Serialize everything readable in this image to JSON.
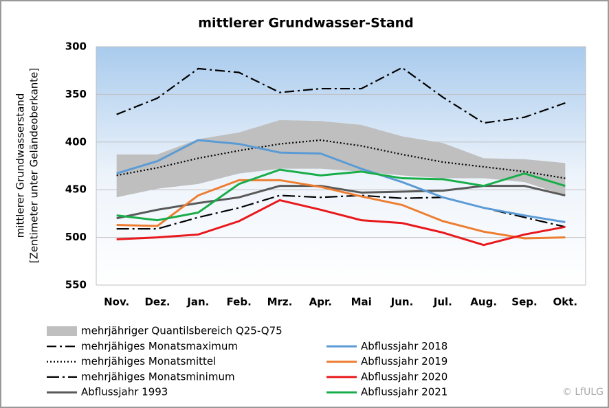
{
  "chart_data": {
    "type": "line",
    "title": "mittlerer Grundwasser-Stand",
    "y_label": [
      "mittlerer Grundwasserstand",
      "[Zentimeter unter Geländeoberkante]"
    ],
    "copyright": "© LfULG",
    "categories": [
      "Nov.",
      "Dez.",
      "Jan.",
      "Feb.",
      "Mrz.",
      "Apr.",
      "Mai",
      "Jun.",
      "Jul.",
      "Aug.",
      "Sep.",
      "Okt."
    ],
    "ylim": [
      300,
      550
    ],
    "yticks": [
      300,
      350,
      400,
      450,
      500,
      550
    ],
    "y_inverted": true,
    "grid": true,
    "band": {
      "name": "mehrjähriger Quantilsbereich Q25-Q75",
      "color": "#bfbfbf",
      "q25": [
        413,
        413,
        397,
        390,
        377,
        378,
        382,
        394,
        401,
        417,
        418,
        422
      ],
      "q75": [
        458,
        449,
        444,
        433,
        428,
        428,
        431,
        435,
        438,
        438,
        442,
        456
      ]
    },
    "series": [
      {
        "name": "mehrjähiges Monatsmaximum",
        "color": "#000000",
        "dash": "dashdot",
        "values": [
          371,
          354,
          323,
          327,
          348,
          344,
          344,
          322,
          353,
          380,
          374,
          359
        ]
      },
      {
        "name": "mehrjähiges Monatsmittel",
        "color": "#000000",
        "dash": "dot",
        "values": [
          435,
          427,
          417,
          409,
          402,
          398,
          404,
          413,
          421,
          426,
          431,
          438
        ]
      },
      {
        "name": "mehrjähiges Monatsminimum",
        "color": "#000000",
        "dash": "longdashdot",
        "values": [
          491,
          491,
          479,
          469,
          456,
          458,
          456,
          459,
          458,
          469,
          479,
          489
        ]
      },
      {
        "name": "Abflussjahr 1993",
        "color": "#595959",
        "dash": "solid",
        "values": [
          480,
          471,
          464,
          458,
          446,
          446,
          453,
          452,
          451,
          446,
          446,
          456
        ]
      },
      {
        "name": "Abflussjahr 2018",
        "color": "#5b9bd5",
        "dash": "solid",
        "values": [
          433,
          420,
          398,
          402,
          411,
          412,
          428,
          442,
          458,
          469,
          477,
          484
        ]
      },
      {
        "name": "Abflussjahr 2019",
        "color": "#ed7d31",
        "dash": "solid",
        "values": [
          487,
          488,
          456,
          440,
          440,
          447,
          457,
          466,
          483,
          494,
          501,
          500
        ]
      },
      {
        "name": "Abflussjahr 2020",
        "color": "#e8191c",
        "dash": "solid",
        "values": [
          502,
          500,
          497,
          483,
          461,
          471,
          482,
          485,
          495,
          508,
          497,
          489
        ]
      },
      {
        "name": "Abflussjahr 2021",
        "color": "#19ad4a",
        "dash": "solid",
        "values": [
          477,
          482,
          474,
          444,
          429,
          435,
          431,
          438,
          439,
          446,
          433,
          446
        ]
      }
    ]
  }
}
